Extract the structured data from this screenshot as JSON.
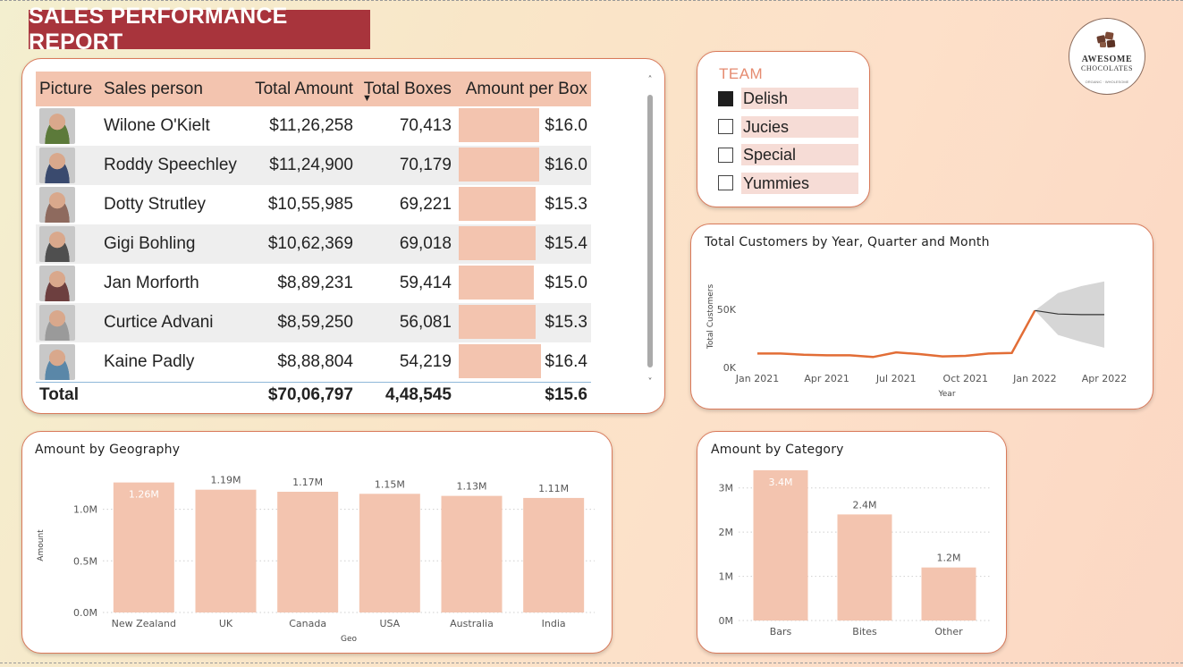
{
  "report_title": "SALES PERFORMANCE REPORT",
  "logo": {
    "line1": "AWESOME",
    "line2": "CHOCOLATES",
    "line3": "ORGANIC · WHOLESOME"
  },
  "colors": {
    "accent": "#a8343c",
    "bar": "#f3c4af",
    "border": "#d97a5b",
    "line": "#e26d36",
    "forecast": "#d6d6d6",
    "avatar_bg": "#8a8a8a"
  },
  "table": {
    "headers": [
      "Picture",
      "Sales person",
      "Total Amount",
      "Total Boxes",
      "Amount per Box"
    ],
    "sort_icon": "sort-descending-icon",
    "rows": [
      {
        "name": "Wilone O'Kielt",
        "amount": "$11,26,258",
        "boxes": "70,413",
        "per_box": "$16.0",
        "per_box_value": 16.0
      },
      {
        "name": "Roddy Speechley",
        "amount": "$11,24,900",
        "boxes": "70,179",
        "per_box": "$16.0",
        "per_box_value": 16.0
      },
      {
        "name": "Dotty Strutley",
        "amount": "$10,55,985",
        "boxes": "69,221",
        "per_box": "$15.3",
        "per_box_value": 15.3
      },
      {
        "name": "Gigi Bohling",
        "amount": "$10,62,369",
        "boxes": "69,018",
        "per_box": "$15.4",
        "per_box_value": 15.4
      },
      {
        "name": "Jan Morforth",
        "amount": "$8,89,231",
        "boxes": "59,414",
        "per_box": "$15.0",
        "per_box_value": 15.0
      },
      {
        "name": "Curtice Advani",
        "amount": "$8,59,250",
        "boxes": "56,081",
        "per_box": "$15.3",
        "per_box_value": 15.3
      },
      {
        "name": "Kaine Padly",
        "amount": "$8,88,804",
        "boxes": "54,219",
        "per_box": "$16.4",
        "per_box_value": 16.4
      }
    ],
    "total": {
      "label": "Total",
      "amount": "$70,06,797",
      "boxes": "4,48,545",
      "per_box": "$15.6"
    }
  },
  "team": {
    "title": "TEAM",
    "items": [
      {
        "label": "Delish",
        "checked": true
      },
      {
        "label": "Jucies",
        "checked": false
      },
      {
        "label": "Special",
        "checked": false
      },
      {
        "label": "Yummies",
        "checked": false
      }
    ]
  },
  "chart_data": [
    {
      "type": "line",
      "title": "Total Customers by Year, Quarter and Month",
      "xlabel": "Year",
      "ylabel": "Total Customers",
      "x_ticks": [
        "Jan 2021",
        "Apr 2021",
        "Jul 2021",
        "Oct 2021",
        "Jan 2022",
        "Apr 2022"
      ],
      "y_ticks": [
        "0K",
        "50K"
      ],
      "ylim": [
        0,
        100000
      ],
      "series": [
        {
          "values": [
            {
              "x": "2021-01",
              "y": 12000
            },
            {
              "x": "2021-02",
              "y": 12000
            },
            {
              "x": "2021-03",
              "y": 11000
            },
            {
              "x": "2021-04",
              "y": 10500
            },
            {
              "x": "2021-05",
              "y": 10500
            },
            {
              "x": "2021-06",
              "y": 9000
            },
            {
              "x": "2021-07",
              "y": 13000
            },
            {
              "x": "2021-08",
              "y": 11500
            },
            {
              "x": "2021-09",
              "y": 9500
            },
            {
              "x": "2021-10",
              "y": 10000
            },
            {
              "x": "2021-11",
              "y": 12000
            },
            {
              "x": "2021-12",
              "y": 12500
            },
            {
              "x": "2022-01",
              "y": 49000
            }
          ]
        },
        {
          "values": [
            {
              "x": "2022-01",
              "y": 49000
            },
            {
              "x": "2022-02",
              "y": 46000
            },
            {
              "x": "2022-03",
              "y": 45500
            },
            {
              "x": "2022-04",
              "y": 45500
            }
          ]
        }
      ],
      "forecast_band": [
        {
          "x": "2022-01",
          "low": 49000,
          "high": 49000
        },
        {
          "x": "2022-02",
          "low": 28000,
          "high": 64000
        },
        {
          "x": "2022-03",
          "low": 22000,
          "high": 70000
        },
        {
          "x": "2022-04",
          "low": 17000,
          "high": 74000
        }
      ]
    },
    {
      "type": "bar",
      "title": "Amount by Geography",
      "xlabel": "Geo",
      "ylabel": "Amount",
      "categories": [
        "New Zealand",
        "UK",
        "Canada",
        "USA",
        "Australia",
        "India"
      ],
      "values": [
        1.26,
        1.19,
        1.17,
        1.15,
        1.13,
        1.11
      ],
      "data_labels": [
        "1.26M",
        "1.19M",
        "1.17M",
        "1.15M",
        "1.13M",
        "1.11M"
      ],
      "y_ticks": [
        "0.0M",
        "0.5M",
        "1.0M"
      ],
      "ylim": [
        0,
        1.3
      ],
      "grid": true
    },
    {
      "type": "bar",
      "title": "Amount by Category",
      "xlabel": "",
      "ylabel": "",
      "categories": [
        "Bars",
        "Bites",
        "Other"
      ],
      "values": [
        3.4,
        2.4,
        1.2
      ],
      "data_labels": [
        "3.4M",
        "2.4M",
        "1.2M"
      ],
      "y_ticks": [
        "0M",
        "1M",
        "2M",
        "3M"
      ],
      "ylim": [
        0,
        3.5
      ],
      "grid": true
    }
  ]
}
